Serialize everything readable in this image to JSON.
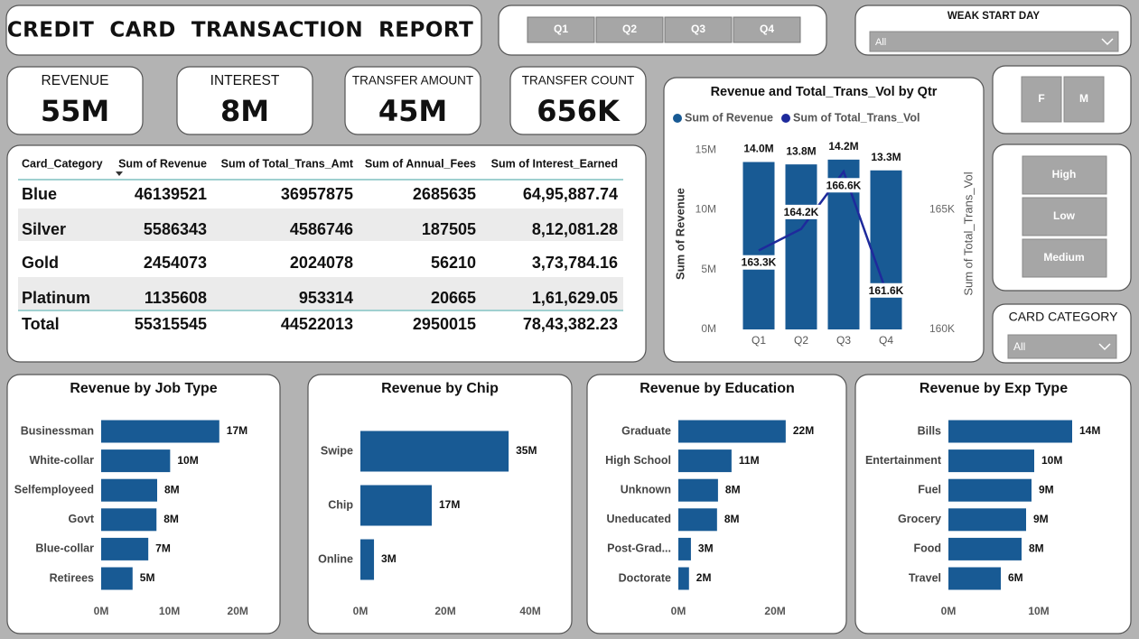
{
  "header": {
    "title": "CREDIT  CARD  TRANSACTION  REPORT"
  },
  "quarter_slicer": {
    "options": [
      "Q1",
      "Q2",
      "Q3",
      "Q4"
    ]
  },
  "week_slicer": {
    "label": "WEAK START DAY",
    "selected": "All"
  },
  "kpis": [
    {
      "label": "REVENUE",
      "value": "55M"
    },
    {
      "label": "INTEREST",
      "value": "8M"
    },
    {
      "label": "TRANSFER AMOUNT",
      "value": "45M"
    },
    {
      "label": "TRANSFER COUNT",
      "value": "656K"
    }
  ],
  "table": {
    "columns": [
      "Card_Category",
      "Sum of Revenue",
      "Sum of Total_Trans_Amt",
      "Sum of Annual_Fees",
      "Sum of Interest_Earned"
    ],
    "rows": [
      [
        "Blue",
        "46139521",
        "36957875",
        "2685635",
        "64,95,887.74"
      ],
      [
        "Silver",
        "5586343",
        "4586746",
        "187505",
        "8,12,081.28"
      ],
      [
        "Gold",
        "2454073",
        "2024078",
        "56210",
        "3,73,784.16"
      ],
      [
        "Platinum",
        "1135608",
        "953314",
        "20665",
        "1,61,629.05"
      ]
    ],
    "total": [
      "Total",
      "55315545",
      "44522013",
      "2950015",
      "78,43,382.23"
    ]
  },
  "gender_slicer": {
    "options": [
      "F",
      "M"
    ]
  },
  "income_slicer": {
    "options": [
      "High",
      "Low",
      "Medium"
    ]
  },
  "card_category_slicer": {
    "label": "CARD CATEGORY",
    "selected": "All"
  },
  "chart_data": [
    {
      "type": "combo",
      "title": "Revenue and Total_Trans_Vol by Qtr",
      "categories": [
        "Q1",
        "Q2",
        "Q3",
        "Q4"
      ],
      "series": [
        {
          "name": "Sum of Revenue",
          "type": "bar",
          "color": "#185a94",
          "values": [
            14.0,
            13.8,
            14.2,
            13.3
          ],
          "value_labels": [
            "14.0M",
            "13.8M",
            "14.2M",
            "13.3M"
          ]
        },
        {
          "name": "Sum of Total_Trans_Vol",
          "type": "line",
          "axis": "y2",
          "color": "#1e2a9c",
          "values": [
            163.3,
            164.2,
            166.6,
            161.6
          ],
          "value_labels": [
            "163.3K",
            "164.2K",
            "166.6K",
            "161.6K"
          ]
        }
      ],
      "ylabel": "Sum of Revenue",
      "y2label": "Sum of Total_Trans_Vol",
      "ylim": [
        0,
        16
      ],
      "yticks": [
        {
          "value": 0,
          "label": "0M"
        },
        {
          "value": 5,
          "label": "5M"
        },
        {
          "value": 10,
          "label": "10M"
        },
        {
          "value": 15,
          "label": "15M"
        }
      ],
      "y2lim": [
        160,
        168
      ],
      "y2ticks": [
        {
          "value": 160,
          "label": "160K"
        },
        {
          "value": 165,
          "label": "165K"
        }
      ]
    },
    {
      "type": "bar",
      "orientation": "horizontal",
      "title": "Revenue by Job Type",
      "categories": [
        "Businessman",
        "White-collar",
        "Selfemployeed",
        "Govt",
        "Blue-collar",
        "Retirees"
      ],
      "values": [
        17.3,
        10.1,
        8.2,
        8.1,
        6.9,
        4.6
      ],
      "value_labels": [
        "17M",
        "10M",
        "8M",
        "8M",
        "7M",
        "5M"
      ],
      "color": "#185a94",
      "xlim": [
        0,
        25
      ],
      "xticks": [
        {
          "value": 0,
          "label": "0M"
        },
        {
          "value": 10,
          "label": "10M"
        },
        {
          "value": 20,
          "label": "20M"
        }
      ]
    },
    {
      "type": "bar",
      "orientation": "horizontal",
      "title": "Revenue by Chip",
      "categories": [
        "Swipe",
        "Chip",
        "Online"
      ],
      "values": [
        34.9,
        16.8,
        3.2
      ],
      "value_labels": [
        "35M",
        "17M",
        "3M"
      ],
      "color": "#185a94",
      "xlim": [
        0,
        47
      ],
      "xticks": [
        {
          "value": 0,
          "label": "0M"
        },
        {
          "value": 20,
          "label": "20M"
        },
        {
          "value": 40,
          "label": "40M"
        }
      ]
    },
    {
      "type": "bar",
      "orientation": "horizontal",
      "title": "Revenue by Education",
      "categories": [
        "Graduate",
        "High School",
        "Unknown",
        "Uneducated",
        "Post-Grad...",
        "Doctorate"
      ],
      "values": [
        22.2,
        11.0,
        8.2,
        8.0,
        2.6,
        2.2
      ],
      "value_labels": [
        "22M",
        "11M",
        "8M",
        "8M",
        "3M",
        "2M"
      ],
      "color": "#185a94",
      "xlim": [
        0,
        32.5
      ],
      "xticks": [
        {
          "value": 0,
          "label": "0M"
        },
        {
          "value": 20,
          "label": "20M"
        }
      ]
    },
    {
      "type": "bar",
      "orientation": "horizontal",
      "title": "Revenue by Exp Type",
      "categories": [
        "Bills",
        "Entertainment",
        "Fuel",
        "Grocery",
        "Food",
        "Travel"
      ],
      "values": [
        13.7,
        9.5,
        9.2,
        8.6,
        8.1,
        5.8
      ],
      "value_labels": [
        "14M",
        "10M",
        "9M",
        "9M",
        "8M",
        "6M"
      ],
      "color": "#185a94",
      "xlim": [
        0,
        19
      ],
      "xticks": [
        {
          "value": 0,
          "label": "0M"
        },
        {
          "value": 10,
          "label": "10M"
        }
      ]
    }
  ]
}
